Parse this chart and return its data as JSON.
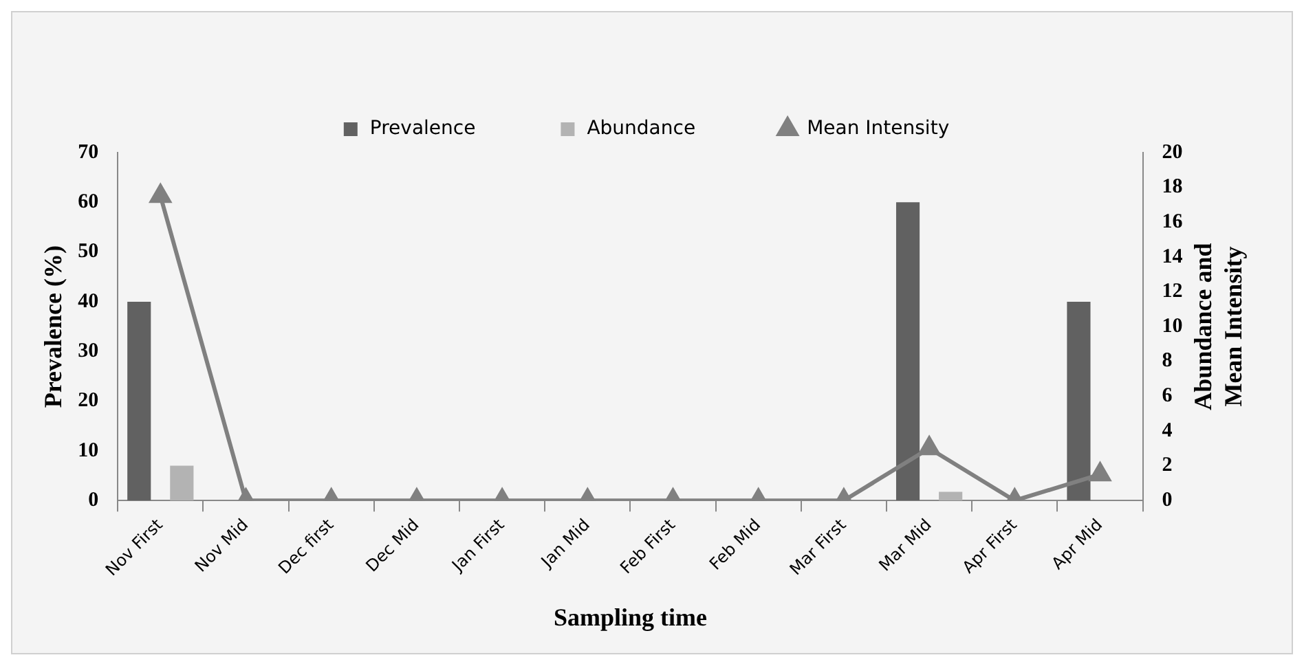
{
  "chart_data": {
    "type": "bar",
    "xlabel": "Sampling time",
    "ylabel": "Prevalence (%)",
    "y2label": "Abundance and Mean Intensity",
    "categories": [
      "Nov First",
      "Nov Mid",
      "Dec first",
      "Dec Mid",
      "Jan First",
      "Jan Mid",
      "Feb First",
      "Feb Mid",
      "Mar First",
      "Mar Mid",
      "Apr First",
      "Apr Mid"
    ],
    "series": [
      {
        "name": "Prevalence",
        "color": "#616161",
        "values": [
          40,
          0,
          0,
          0,
          0,
          0,
          0,
          0,
          0,
          60,
          0,
          40
        ]
      },
      {
        "name": "Abundance",
        "axis": "y2",
        "color": "#b3b3b3",
        "values": [
          2,
          0,
          0,
          0,
          0,
          0,
          0,
          0,
          0,
          0.5,
          0,
          null
        ]
      },
      {
        "name": "Mean Intensity",
        "type": "line",
        "axis": "y2",
        "color": "#808080",
        "values": [
          17.5,
          0,
          0,
          0,
          0,
          0,
          0,
          0,
          0,
          3,
          0,
          1.5
        ]
      }
    ],
    "ylim": [
      0,
      70
    ],
    "yticks": [
      0,
      10,
      20,
      30,
      40,
      50,
      60,
      70
    ],
    "y2lim": [
      0,
      20
    ],
    "y2ticks": [
      0,
      2,
      4,
      6,
      8,
      10,
      12,
      14,
      16,
      18,
      20
    ],
    "legend": "top",
    "grid": false,
    "marker": "triangle",
    "line_style": "solid"
  }
}
